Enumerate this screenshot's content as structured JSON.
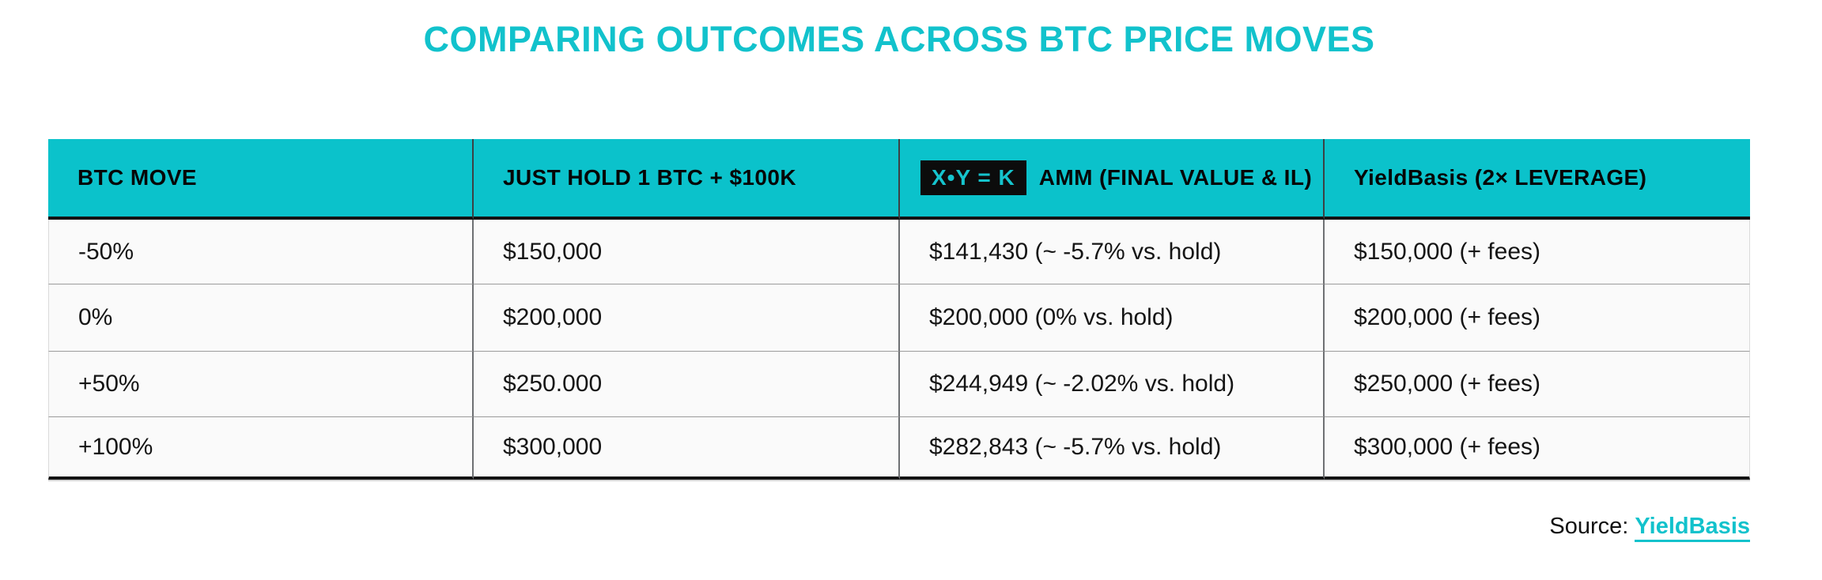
{
  "chart_data": {
    "type": "table",
    "title": "COMPARING OUTCOMES ACROSS BTC PRICE MOVES",
    "columns": [
      "BTC MOVE",
      "JUST HOLD 1 BTC + $100K",
      "X•Y = K AMM (FINAL VALUE & IL)",
      "YieldBasis (2× LEVERAGE)"
    ],
    "header": {
      "col1": "BTC MOVE",
      "col2": "JUST HOLD 1 BTC + $100K",
      "col3_badge": "X•Y = K",
      "col3_label": "AMM (FINAL VALUE & IL)",
      "col4": "YieldBasis (2× LEVERAGE)"
    },
    "rows": [
      {
        "btc_move": "-50%",
        "hold": "$150,000",
        "amm": "$141,430 (~ -5.7% vs. hold)",
        "yieldbasis": "$150,000 (+ fees)"
      },
      {
        "btc_move": "0%",
        "hold": "$200,000",
        "amm": "$200,000 (0% vs. hold)",
        "yieldbasis": "$200,000 (+ fees)"
      },
      {
        "btc_move": "+50%",
        "hold": "$250.000",
        "amm": "$244,949 (~ -2.02% vs. hold)",
        "yieldbasis": "$250,000 (+ fees)"
      },
      {
        "btc_move": "+100%",
        "hold": "$300,000",
        "amm": "$282,843 (~ -5.7% vs. hold)",
        "yieldbasis": "$300,000 (+ fees)"
      }
    ],
    "source": {
      "label": "Source:",
      "link_text": "YieldBasis"
    },
    "colors": {
      "teal": "#12c2cc",
      "header_bg": "#0bc2cb",
      "badge_bg": "#0c0c0c",
      "badge_text": "#15c4cd",
      "row_bg": "#fafafa",
      "text": "#151515",
      "rule_black": "#131313"
    },
    "layout_hints": {
      "grid": "on",
      "header_style": "teal band, black text",
      "legend_position": "none"
    }
  }
}
